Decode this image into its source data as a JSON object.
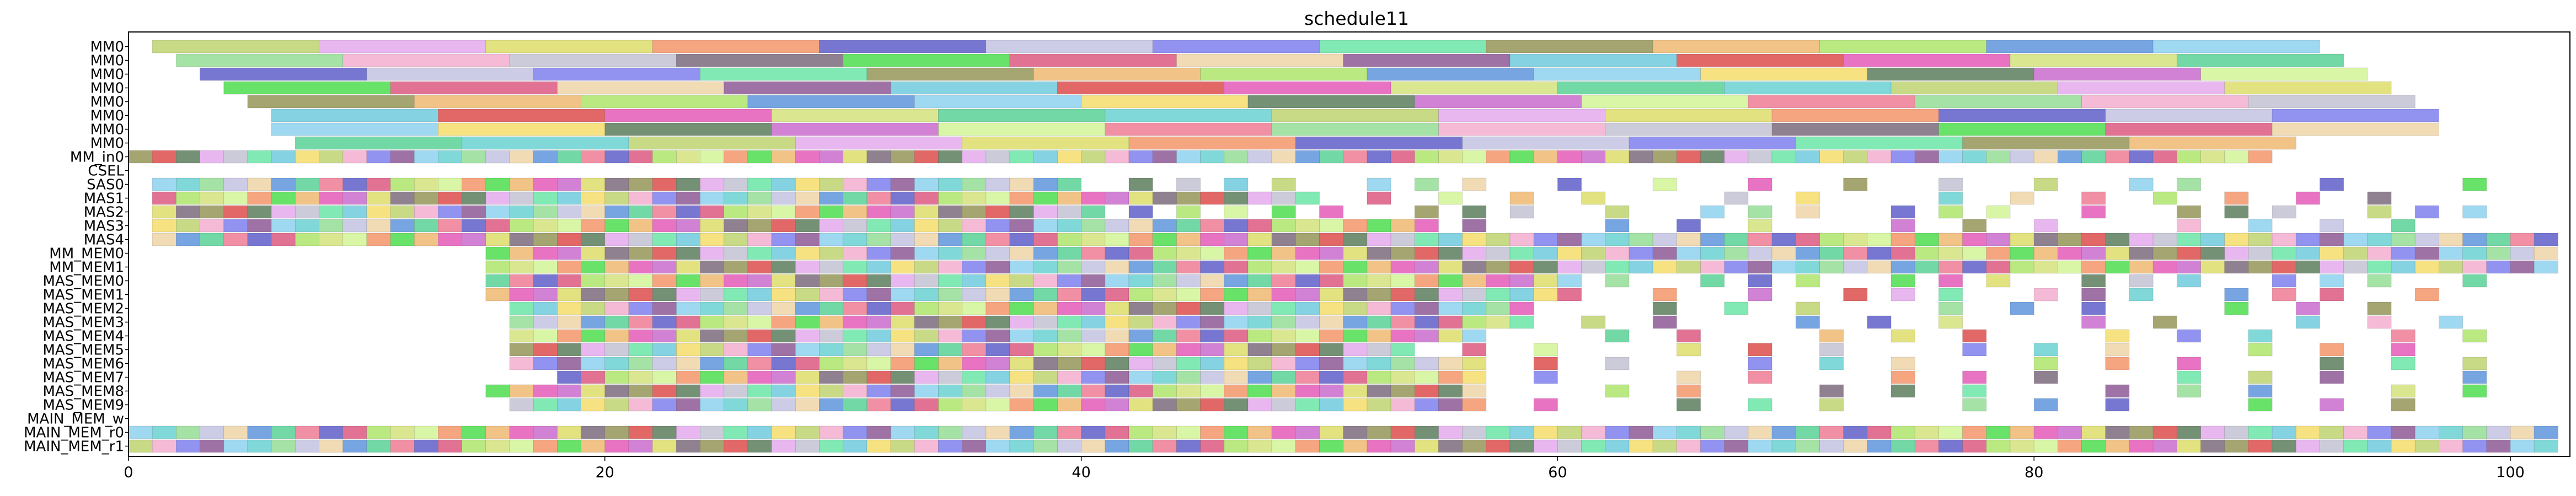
{
  "chart_data": {
    "type": "bar",
    "subtype": "gantt",
    "title": "schedule11",
    "xlabel": "",
    "ylabel": "",
    "xlim": [
      0,
      102.5
    ],
    "x_ticks": [
      0,
      20,
      40,
      60,
      80,
      100
    ],
    "x_tick_labels": [
      "0",
      "20",
      "40",
      "60",
      "80",
      "100"
    ],
    "grid": false,
    "legend": "none",
    "rows": [
      "MM0",
      "MM0",
      "MM0",
      "MM0",
      "MM0",
      "MM0",
      "MM0",
      "MM0",
      "MM_in0",
      "CSEL",
      "SAS0",
      "MAS1",
      "MAS2",
      "MAS3",
      "MAS4",
      "MM_MEM0",
      "MM_MEM1",
      "MAS_MEM0",
      "MAS_MEM1",
      "MAS_MEM2",
      "MAS_MEM3",
      "MAS_MEM4",
      "MAS_MEM5",
      "MAS_MEM6",
      "MAS_MEM7",
      "MAS_MEM8",
      "MAS_MEM9",
      "MAIN_MEM_w",
      "MAIN_MEM_r0",
      "MAIN_MEM_r1"
    ],
    "palette": [
      "#c5d87f",
      "#e06a8e",
      "#6d8a6e",
      "#c9c9e6",
      "#e86bc0",
      "#f3b6d4",
      "#b7e87a",
      "#e7b3ef",
      "#f0d9b0",
      "#d07bd3",
      "#8c8cf0",
      "#d8e68a",
      "#c8c8d8",
      "#6fa0e0",
      "#e0e07a",
      "#9a6aa0",
      "#d6f5a0",
      "#7ae8b0",
      "#6ad6a0",
      "#8a7a8a",
      "#9ad6f0",
      "#f5a07a",
      "#7ed0e0",
      "#f08aa0",
      "#a0a06a",
      "#7ad6d6",
      "#60e060",
      "#f5e07a",
      "#7070d0",
      "#e06060",
      "#a0e0a0",
      "#f0c080"
    ],
    "bars": [
      {
        "row": 0,
        "x": [
          1,
          8
        ]
      },
      {
        "row": 0,
        "x": [
          8,
          15
        ]
      },
      {
        "row": 0,
        "x": [
          15,
          22
        ]
      },
      {
        "row": 0,
        "x": [
          22,
          29
        ]
      },
      {
        "row": 0,
        "x": [
          29,
          36
        ]
      },
      {
        "row": 0,
        "x": [
          36,
          43
        ]
      },
      {
        "row": 0,
        "x": [
          43,
          50
        ]
      },
      {
        "row": 0,
        "x": [
          50,
          57
        ]
      },
      {
        "row": 0,
        "x": [
          57,
          64
        ]
      },
      {
        "row": 0,
        "x": [
          64,
          71
        ]
      },
      {
        "row": 0,
        "x": [
          71,
          78
        ]
      },
      {
        "row": 0,
        "x": [
          78,
          85
        ]
      },
      {
        "row": 0,
        "x": [
          85,
          92
        ]
      },
      {
        "row": 1,
        "x": [
          2,
          9
        ]
      },
      {
        "row": 1,
        "x": [
          9,
          16
        ]
      },
      {
        "row": 1,
        "x": [
          16,
          23
        ]
      },
      {
        "row": 1,
        "x": [
          23,
          30
        ]
      },
      {
        "row": 1,
        "x": [
          30,
          37
        ]
      },
      {
        "row": 1,
        "x": [
          37,
          44
        ]
      },
      {
        "row": 1,
        "x": [
          44,
          51
        ]
      },
      {
        "row": 1,
        "x": [
          51,
          58
        ]
      },
      {
        "row": 1,
        "x": [
          58,
          65
        ]
      },
      {
        "row": 1,
        "x": [
          65,
          72
        ]
      },
      {
        "row": 1,
        "x": [
          72,
          79
        ]
      },
      {
        "row": 1,
        "x": [
          79,
          86
        ]
      },
      {
        "row": 1,
        "x": [
          86,
          93
        ]
      },
      {
        "row": 2,
        "x": [
          3,
          10
        ]
      },
      {
        "row": 2,
        "x": [
          10,
          17
        ]
      },
      {
        "row": 2,
        "x": [
          17,
          24
        ]
      },
      {
        "row": 2,
        "x": [
          24,
          31
        ]
      },
      {
        "row": 2,
        "x": [
          31,
          38
        ]
      },
      {
        "row": 2,
        "x": [
          38,
          45
        ]
      },
      {
        "row": 2,
        "x": [
          45,
          52
        ]
      },
      {
        "row": 2,
        "x": [
          52,
          59
        ]
      },
      {
        "row": 2,
        "x": [
          59,
          66
        ]
      },
      {
        "row": 2,
        "x": [
          66,
          73
        ]
      },
      {
        "row": 2,
        "x": [
          73,
          80
        ]
      },
      {
        "row": 2,
        "x": [
          80,
          87
        ]
      },
      {
        "row": 2,
        "x": [
          87,
          94
        ]
      },
      {
        "row": 3,
        "x": [
          4,
          11
        ]
      },
      {
        "row": 3,
        "x": [
          11,
          18
        ]
      },
      {
        "row": 3,
        "x": [
          18,
          25
        ]
      },
      {
        "row": 3,
        "x": [
          25,
          32
        ]
      },
      {
        "row": 3,
        "x": [
          32,
          39
        ]
      },
      {
        "row": 3,
        "x": [
          39,
          46
        ]
      },
      {
        "row": 3,
        "x": [
          46,
          53
        ]
      },
      {
        "row": 3,
        "x": [
          53,
          60
        ]
      },
      {
        "row": 3,
        "x": [
          60,
          67
        ]
      },
      {
        "row": 3,
        "x": [
          67,
          74
        ]
      },
      {
        "row": 3,
        "x": [
          74,
          81
        ]
      },
      {
        "row": 3,
        "x": [
          81,
          88
        ]
      },
      {
        "row": 3,
        "x": [
          88,
          95
        ]
      },
      {
        "row": 4,
        "x": [
          5,
          12
        ]
      },
      {
        "row": 4,
        "x": [
          12,
          19
        ]
      },
      {
        "row": 4,
        "x": [
          19,
          26
        ]
      },
      {
        "row": 4,
        "x": [
          26,
          33
        ]
      },
      {
        "row": 4,
        "x": [
          33,
          40
        ]
      },
      {
        "row": 4,
        "x": [
          40,
          47
        ]
      },
      {
        "row": 4,
        "x": [
          47,
          54
        ]
      },
      {
        "row": 4,
        "x": [
          54,
          61
        ]
      },
      {
        "row": 4,
        "x": [
          61,
          68
        ]
      },
      {
        "row": 4,
        "x": [
          68,
          75
        ]
      },
      {
        "row": 4,
        "x": [
          75,
          82
        ]
      },
      {
        "row": 4,
        "x": [
          82,
          89
        ]
      },
      {
        "row": 4,
        "x": [
          89,
          96
        ]
      },
      {
        "row": 5,
        "x": [
          6,
          13
        ]
      },
      {
        "row": 5,
        "x": [
          13,
          20
        ]
      },
      {
        "row": 5,
        "x": [
          20,
          27
        ]
      },
      {
        "row": 5,
        "x": [
          27,
          34
        ]
      },
      {
        "row": 5,
        "x": [
          34,
          41
        ]
      },
      {
        "row": 5,
        "x": [
          41,
          48
        ]
      },
      {
        "row": 5,
        "x": [
          48,
          55
        ]
      },
      {
        "row": 5,
        "x": [
          55,
          62
        ]
      },
      {
        "row": 5,
        "x": [
          62,
          69
        ]
      },
      {
        "row": 5,
        "x": [
          69,
          76
        ]
      },
      {
        "row": 5,
        "x": [
          76,
          83
        ]
      },
      {
        "row": 5,
        "x": [
          83,
          90
        ]
      },
      {
        "row": 5,
        "x": [
          90,
          97
        ]
      },
      {
        "row": 6,
        "x": [
          6,
          13
        ]
      },
      {
        "row": 6,
        "x": [
          13,
          20
        ]
      },
      {
        "row": 6,
        "x": [
          20,
          27
        ]
      },
      {
        "row": 6,
        "x": [
          27,
          34
        ]
      },
      {
        "row": 6,
        "x": [
          34,
          41
        ]
      },
      {
        "row": 6,
        "x": [
          41,
          48
        ]
      },
      {
        "row": 6,
        "x": [
          48,
          55
        ]
      },
      {
        "row": 6,
        "x": [
          55,
          62
        ]
      },
      {
        "row": 6,
        "x": [
          62,
          69
        ]
      },
      {
        "row": 6,
        "x": [
          69,
          76
        ]
      },
      {
        "row": 6,
        "x": [
          76,
          83
        ]
      },
      {
        "row": 6,
        "x": [
          83,
          90
        ]
      },
      {
        "row": 6,
        "x": [
          90,
          97
        ]
      },
      {
        "row": 7,
        "x": [
          7,
          14
        ]
      },
      {
        "row": 7,
        "x": [
          14,
          21
        ]
      },
      {
        "row": 7,
        "x": [
          21,
          28
        ]
      },
      {
        "row": 7,
        "x": [
          28,
          35
        ]
      },
      {
        "row": 7,
        "x": [
          35,
          42
        ]
      },
      {
        "row": 7,
        "x": [
          42,
          49
        ]
      },
      {
        "row": 7,
        "x": [
          49,
          56
        ]
      },
      {
        "row": 7,
        "x": [
          56,
          63
        ]
      },
      {
        "row": 7,
        "x": [
          63,
          70
        ]
      },
      {
        "row": 7,
        "x": [
          70,
          77
        ]
      },
      {
        "row": 7,
        "x": [
          77,
          84
        ]
      },
      {
        "row": 7,
        "x": [
          84,
          91
        ]
      }
    ],
    "block_rows": [
      {
        "row": 8,
        "start": 0,
        "end": 90,
        "step": 1,
        "width": 1,
        "skip": []
      },
      {
        "row": 10,
        "start": 1,
        "end": 40,
        "step": 1,
        "width": 1,
        "skip": []
      },
      {
        "row": 10,
        "start": 42,
        "end": 101,
        "step": 2,
        "width": 1,
        "skip": [
          50,
          58,
          62,
          66,
          70,
          74,
          78,
          82,
          88,
          90,
          94,
          96,
          100
        ]
      },
      {
        "row": 11,
        "start": 1,
        "end": 50,
        "step": 1,
        "width": 1,
        "skip": []
      },
      {
        "row": 11,
        "start": 52,
        "end": 96,
        "step": 3,
        "width": 1,
        "skip": [
          64,
          73
        ]
      },
      {
        "row": 12,
        "start": 1,
        "end": 40,
        "step": 1,
        "width": 1,
        "skip": []
      },
      {
        "row": 12,
        "start": 40,
        "end": 99,
        "step": 2,
        "width": 1,
        "skip": [
          52,
          60,
          64,
          72,
          80,
          84,
          92
        ]
      },
      {
        "row": 13,
        "start": 1,
        "end": 55,
        "step": 1,
        "width": 1,
        "skip": []
      },
      {
        "row": 13,
        "start": 56,
        "end": 98,
        "step": 3,
        "width": 1,
        "skip": [
          59,
          71,
          83
        ]
      },
      {
        "row": 14,
        "start": 1,
        "end": 102,
        "step": 1,
        "width": 1,
        "skip": []
      },
      {
        "row": 15,
        "start": 15,
        "end": 102,
        "step": 1,
        "width": 1,
        "skip": []
      },
      {
        "row": 16,
        "start": 15,
        "end": 102,
        "step": 1,
        "width": 1,
        "skip": []
      },
      {
        "row": 17,
        "start": 15,
        "end": 60,
        "step": 1,
        "width": 1,
        "skip": []
      },
      {
        "row": 17,
        "start": 60,
        "end": 100,
        "step": 2,
        "width": 1,
        "skip": [
          64,
          72,
          80,
          88,
          96
        ]
      },
      {
        "row": 18,
        "start": 15,
        "end": 60,
        "step": 1,
        "width": 1,
        "skip": []
      },
      {
        "row": 18,
        "start": 60,
        "end": 100,
        "step": 2,
        "width": 1,
        "skip": [
          62,
          66,
          70,
          78,
          86,
          94,
          98
        ]
      },
      {
        "row": 19,
        "start": 16,
        "end": 58,
        "step": 1,
        "width": 1,
        "skip": []
      },
      {
        "row": 19,
        "start": 58,
        "end": 100,
        "step": 3,
        "width": 1,
        "skip": [
          61,
          73,
          85,
          97
        ]
      },
      {
        "row": 20,
        "start": 16,
        "end": 58,
        "step": 1,
        "width": 1,
        "skip": []
      },
      {
        "row": 20,
        "start": 58,
        "end": 100,
        "step": 3,
        "width": 1,
        "skip": [
          67,
          79,
          88
        ]
      },
      {
        "row": 21,
        "start": 16,
        "end": 56,
        "step": 1,
        "width": 1,
        "skip": []
      },
      {
        "row": 21,
        "start": 56,
        "end": 100,
        "step": 3,
        "width": 1,
        "skip": [
          59,
          68,
          80,
          92
        ]
      },
      {
        "row": 22,
        "start": 16,
        "end": 54,
        "step": 1,
        "width": 1,
        "skip": []
      },
      {
        "row": 22,
        "start": 56,
        "end": 100,
        "step": 3,
        "width": 1,
        "skip": [
          62,
          74,
          86,
          98
        ]
      },
      {
        "row": 23,
        "start": 16,
        "end": 56,
        "step": 1,
        "width": 1,
        "skip": []
      },
      {
        "row": 23,
        "start": 56,
        "end": 100,
        "step": 3,
        "width": 1,
        "skip": [
          65,
          77,
          89
        ]
      },
      {
        "row": 24,
        "start": 18,
        "end": 56,
        "step": 1,
        "width": 1,
        "skip": []
      },
      {
        "row": 24,
        "start": 56,
        "end": 100,
        "step": 3,
        "width": 1,
        "skip": [
          62,
          71,
          83,
          95
        ]
      },
      {
        "row": 25,
        "start": 15,
        "end": 56,
        "step": 1,
        "width": 1,
        "skip": []
      },
      {
        "row": 25,
        "start": 56,
        "end": 100,
        "step": 3,
        "width": 1,
        "skip": [
          59,
          68,
          80,
          92
        ]
      },
      {
        "row": 26,
        "start": 16,
        "end": 56,
        "step": 1,
        "width": 1,
        "skip": []
      },
      {
        "row": 26,
        "start": 56,
        "end": 100,
        "step": 3,
        "width": 1,
        "skip": [
          62,
          74,
          86,
          98
        ]
      },
      {
        "row": 28,
        "start": 0,
        "end": 102,
        "step": 1,
        "width": 1,
        "skip": []
      },
      {
        "row": 29,
        "start": 0,
        "end": 102,
        "step": 1,
        "width": 1,
        "skip": []
      }
    ]
  }
}
